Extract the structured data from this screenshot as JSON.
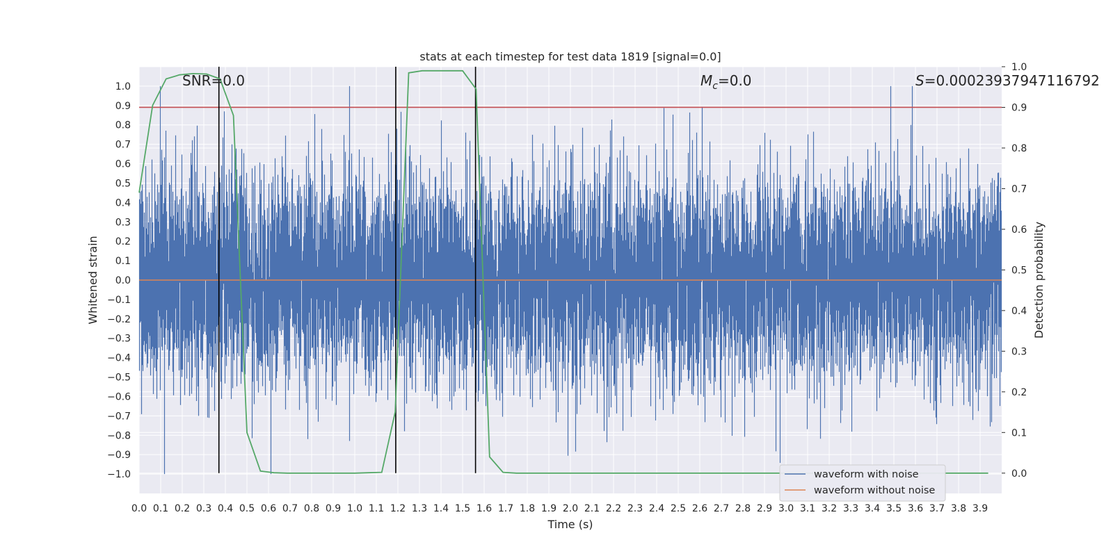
{
  "chart_data": {
    "type": "line",
    "title": "stats at each timestep for test data 1819 [signal=0.0]",
    "xlabel": "Time (s)",
    "ylabel": "Whitened strain",
    "ylabel_right": "Detection probability",
    "xlim": [
      0.0,
      4.0
    ],
    "ylim": [
      -1.1,
      1.1
    ],
    "ylim_right": [
      -0.05,
      1.0
    ],
    "x_ticks": [
      "0.0",
      "0.1",
      "0.2",
      "0.3",
      "0.4",
      "0.5",
      "0.6",
      "0.7",
      "0.8",
      "0.9",
      "1.0",
      "1.1",
      "1.2",
      "1.3",
      "1.4",
      "1.5",
      "1.6",
      "1.7",
      "1.8",
      "1.9",
      "2.0",
      "2.1",
      "2.2",
      "2.3",
      "2.4",
      "2.5",
      "2.6",
      "2.7",
      "2.8",
      "2.9",
      "3.0",
      "3.1",
      "3.2",
      "3.3",
      "3.4",
      "3.5",
      "3.6",
      "3.7",
      "3.8",
      "3.9"
    ],
    "y_ticks": [
      "1.0",
      "0.9",
      "0.8",
      "0.7",
      "0.6",
      "0.5",
      "0.4",
      "0.3",
      "0.2",
      "0.1",
      "0.0",
      "−0.1",
      "−0.2",
      "−0.3",
      "−0.4",
      "−0.5",
      "−0.6",
      "−0.7",
      "−0.8",
      "−0.9",
      "−1.0"
    ],
    "y_ticks_right": [
      "1.0",
      "0.9",
      "0.8",
      "0.7",
      "0.6",
      "0.5",
      "0.4",
      "0.3",
      "0.2",
      "0.1",
      "0.0"
    ],
    "annotations": {
      "snr": "SNR=0.0",
      "mc_symbol": "M",
      "mc_sub": "c",
      "mc_value": "=0.0",
      "s_symbol": "S",
      "s_value": "=0.00023937947116792"
    },
    "threshold": 0.9,
    "vertical_lines_s": [
      0.37,
      1.19,
      1.56
    ],
    "series": [
      {
        "name": "waveform with noise",
        "color": "#4c72b0",
        "axis": "left",
        "kind": "noise",
        "sample_rate_hz": 2048,
        "amplitude_range": [
          -1.0,
          1.0
        ]
      },
      {
        "name": "waveform without noise",
        "color": "#dd8452",
        "axis": "left",
        "kind": "flat",
        "value": 0.0
      },
      {
        "name": "detection probability",
        "color": "#55a868",
        "axis": "right",
        "x": [
          0.0,
          0.0625,
          0.125,
          0.1875,
          0.25,
          0.3125,
          0.375,
          0.4375,
          0.5,
          0.5625,
          0.625,
          0.6875,
          0.75,
          0.8125,
          0.875,
          0.9375,
          1.0,
          1.0625,
          1.125,
          1.1875,
          1.25,
          1.3125,
          1.375,
          1.4375,
          1.5,
          1.5625,
          1.625,
          1.6875,
          1.75,
          1.8125,
          1.875,
          1.9375,
          2.0,
          3.9375
        ],
        "values": [
          0.69,
          0.905,
          0.97,
          0.98,
          0.983,
          0.982,
          0.97,
          0.88,
          0.1,
          0.005,
          0.001,
          0.0,
          0.0,
          0.0,
          0.0,
          0.0,
          0.0,
          0.001,
          0.002,
          0.15,
          0.985,
          0.99,
          0.99,
          0.99,
          0.99,
          0.945,
          0.04,
          0.002,
          0.0,
          0.0,
          0.0,
          0.0,
          0.0,
          0.0
        ]
      }
    ],
    "threshold_color": "#c44e52",
    "vline_color": "#000000",
    "legend": {
      "placement": "lower-right",
      "entries": [
        "waveform with noise",
        "waveform without noise"
      ]
    }
  }
}
